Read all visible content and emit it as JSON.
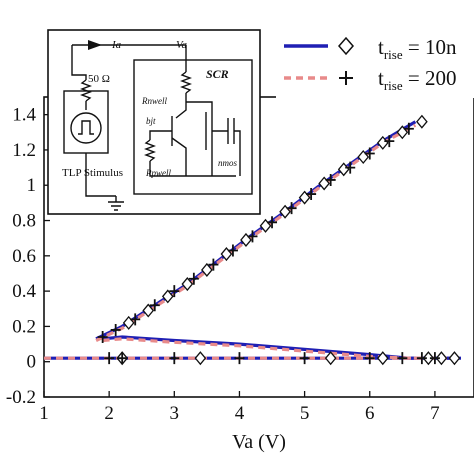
{
  "chart_data": {
    "type": "line",
    "xlabel": "Va (V)",
    "ylabel": "",
    "xlim": [
      1,
      7.6
    ],
    "ylim": [
      -0.2,
      1.5
    ],
    "x_ticks": [
      "1",
      "2",
      "3",
      "4",
      "5",
      "6",
      "7"
    ],
    "y_ticks": [
      "-0.2",
      "0",
      "0.2",
      "0.4",
      "0.6",
      "0.8",
      "1",
      "1.2",
      "1.4"
    ],
    "grid": false,
    "legend_position": "top-right",
    "series": [
      {
        "name_main": "t",
        "name_sub": "rise",
        "name_rest": " = 10n",
        "color": "#1f1fb4",
        "dash": "solid",
        "marker": "diamond",
        "segments": [
          {
            "x": [
              1.8,
              2.2,
              2.7,
              3.2,
              3.7,
              4.2,
              4.7,
              5.2,
              5.7,
              6.2,
              6.7
            ],
            "y": [
              0.13,
              0.2,
              0.32,
              0.44,
              0.58,
              0.72,
              0.85,
              0.99,
              1.12,
              1.25,
              1.36
            ]
          },
          {
            "x": [
              1.9,
              2.2,
              3.0,
              4.0,
              5.0,
              6.0,
              6.6,
              7.3
            ],
            "y": [
              0.13,
              0.14,
              0.12,
              0.1,
              0.07,
              0.04,
              0.02,
              0.02
            ]
          },
          {
            "x": [
              1.0,
              2.0,
              3.0,
              4.0,
              5.0,
              6.0,
              7.0,
              7.4
            ],
            "y": [
              0.02,
              0.02,
              0.02,
              0.02,
              0.02,
              0.02,
              0.02,
              0.02
            ]
          }
        ],
        "markers": [
          {
            "x": [
              2.3,
              2.6,
              2.9,
              3.2,
              3.5,
              3.8,
              4.1,
              4.4,
              4.7,
              5.0,
              5.3,
              5.6,
              5.9,
              6.2,
              6.5,
              6.8
            ],
            "y": [
              0.22,
              0.29,
              0.37,
              0.44,
              0.52,
              0.61,
              0.69,
              0.77,
              0.85,
              0.93,
              1.01,
              1.09,
              1.16,
              1.24,
              1.3,
              1.36
            ]
          },
          {
            "x": [
              2.2,
              3.4,
              5.4,
              6.2,
              6.9,
              7.1,
              7.3
            ],
            "y": [
              0.02,
              0.02,
              0.02,
              0.02,
              0.02,
              0.02,
              0.02
            ]
          }
        ]
      },
      {
        "name_main": "t",
        "name_sub": "rise",
        "name_rest": " = 200",
        "color": "#e88a8a",
        "dash": "dashed",
        "marker": "plus",
        "segments": [
          {
            "x": [
              1.8,
              2.2,
              2.7,
              3.2,
              3.7,
              4.2,
              4.7,
              5.2,
              5.7,
              6.2,
              6.7
            ],
            "y": [
              0.12,
              0.19,
              0.31,
              0.43,
              0.57,
              0.71,
              0.84,
              0.98,
              1.11,
              1.24,
              1.34
            ]
          },
          {
            "x": [
              1.9,
              2.2,
              3.0,
              4.0,
              5.0,
              6.0,
              6.6,
              7.2
            ],
            "y": [
              0.12,
              0.13,
              0.11,
              0.09,
              0.06,
              0.03,
              0.02,
              0.02
            ]
          },
          {
            "x": [
              1.0,
              2.0,
              3.0,
              4.0,
              5.0,
              6.0,
              7.0,
              7.3
            ],
            "y": [
              0.02,
              0.02,
              0.02,
              0.02,
              0.02,
              0.02,
              0.02,
              0.02
            ]
          }
        ],
        "markers": [
          {
            "x": [
              1.9,
              2.1,
              2.4,
              2.7,
              3.0,
              3.3,
              3.6,
              3.9,
              4.2,
              4.5,
              4.8,
              5.1,
              5.4,
              5.7,
              6.0,
              6.3,
              6.6
            ],
            "y": [
              0.14,
              0.18,
              0.24,
              0.32,
              0.4,
              0.47,
              0.55,
              0.63,
              0.71,
              0.79,
              0.87,
              0.95,
              1.03,
              1.1,
              1.18,
              1.25,
              1.32
            ]
          },
          {
            "x": [
              2.0,
              2.2,
              3.0,
              4.0,
              5.0,
              6.0,
              6.5,
              6.8,
              7.0
            ],
            "y": [
              0.02,
              0.02,
              0.02,
              0.02,
              0.02,
              0.02,
              0.02,
              0.02,
              0.02
            ]
          }
        ]
      }
    ]
  },
  "inset": {
    "ia_label": "Ia",
    "va_label": "Va",
    "resistor_label": "50 Ω",
    "source_label": "TLP Stimulus",
    "scr_label": "SCR",
    "rnwell_label": "Rnwell",
    "bjt_label": "bjt",
    "rpwell_label": "Rpwell",
    "nmos_label": "nmos"
  }
}
